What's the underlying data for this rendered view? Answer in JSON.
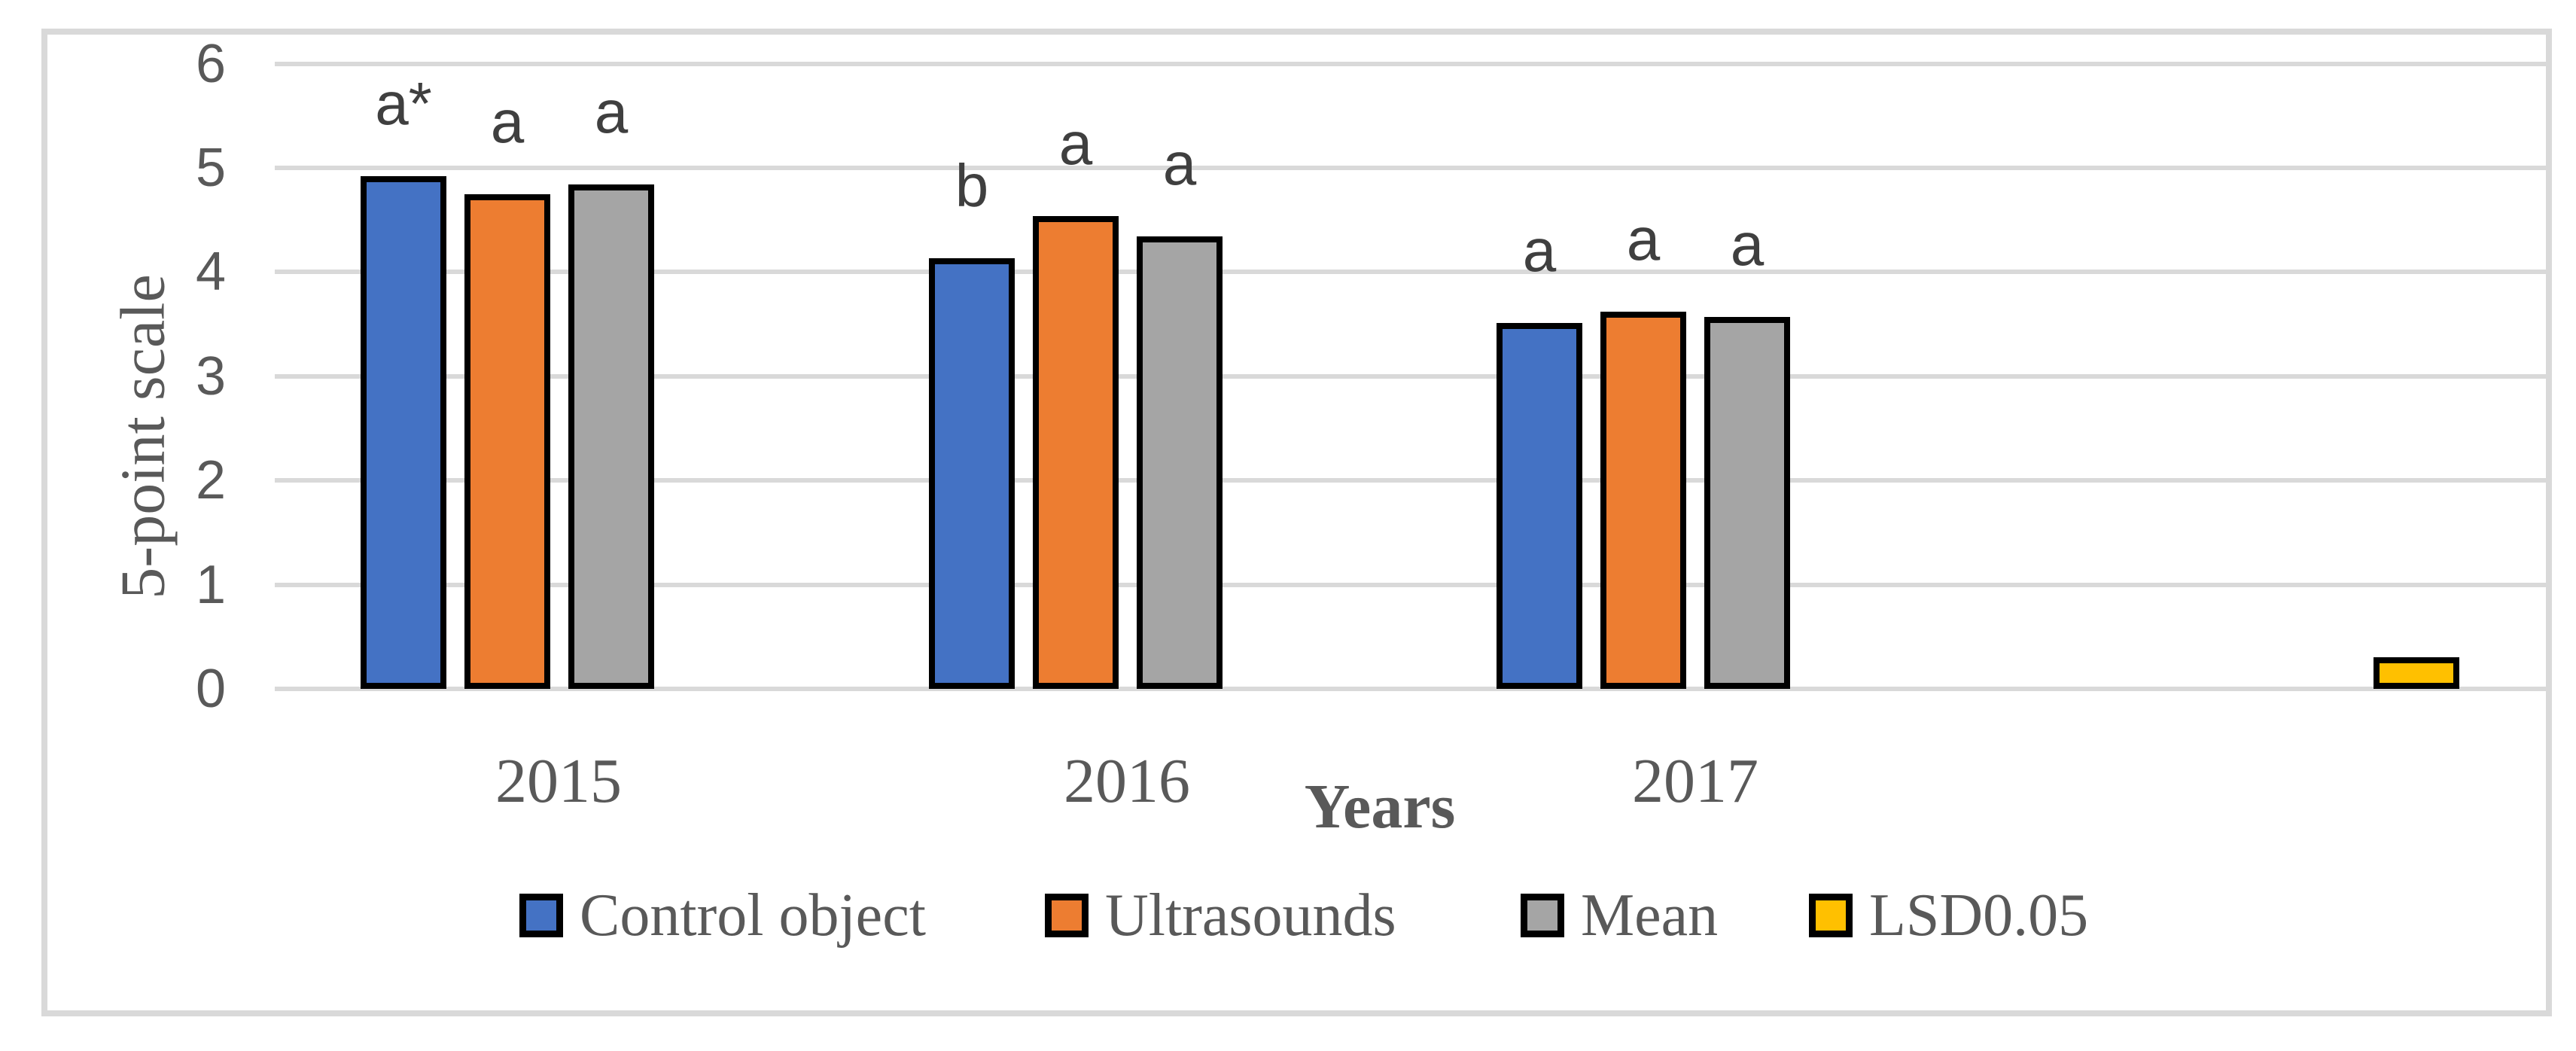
{
  "chart_data": {
    "type": "bar",
    "title": "",
    "categories": [
      "2015",
      "2016",
      "2017",
      ""
    ],
    "series": [
      {
        "name": "Control object",
        "color": "#4472c4",
        "values": [
          4.92,
          4.13,
          3.51,
          null
        ],
        "letters": [
          "a*",
          "b",
          "a",
          null
        ]
      },
      {
        "name": "Ultrasounds",
        "color": "#ed7d31",
        "values": [
          4.75,
          4.54,
          3.62,
          null
        ],
        "letters": [
          "a",
          "a",
          "a",
          null
        ]
      },
      {
        "name": "Mean",
        "color": "#a5a5a5",
        "values": [
          4.84,
          4.34,
          3.57,
          null
        ],
        "letters": [
          "a",
          "a",
          "a",
          null
        ]
      },
      {
        "name": "LSD0.05",
        "color": "#ffc000",
        "values": [
          null,
          null,
          null,
          0.3
        ],
        "letters": [
          null,
          null,
          null,
          null
        ]
      }
    ],
    "xlabel": "Years",
    "ylabel": "5-point scale",
    "ylim": [
      0,
      6
    ],
    "yticks": [
      "0",
      "1",
      "2",
      "3",
      "4",
      "5",
      "6"
    ],
    "grid": true,
    "legend_position": "bottom",
    "bar_outline_color": "#000000",
    "gridline_color": "#d9d9d9",
    "frame_color": "#d9d9d9",
    "text_color": "#595959",
    "letter_color": "#3f3f3f"
  }
}
